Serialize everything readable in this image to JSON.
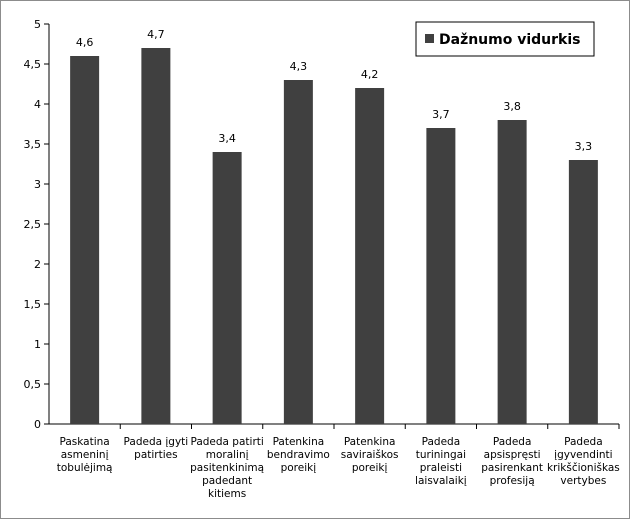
{
  "chart_data": {
    "type": "bar",
    "categories": [
      "Paskatina asmeninį tobulėjimą",
      "Padeda įgyti patirties",
      "Padeda patirti moralinį pasitenkinimą padedant kitiems",
      "Patenkina bendravimo poreikį",
      "Patenkina saviraiškos poreikį",
      "Padeda turiningai praleisti laisvalaikį",
      "Padeda apsispręsti pasirenkant profesiją",
      "Padeda įgyvendinti krikščioniškas vertybes"
    ],
    "category_lines": [
      [
        "Paskatina",
        "asmeninį",
        "tobulėjimą"
      ],
      [
        "Padeda įgyti",
        "patirties"
      ],
      [
        "Padeda patirti",
        "moralinį",
        "pasitenkinimą",
        "padedant",
        "kitiems"
      ],
      [
        "Patenkina",
        "bendravimo",
        "poreikį"
      ],
      [
        "Patenkina",
        "saviraiškos",
        "poreikį"
      ],
      [
        "Padeda",
        "turiningai",
        "praleisti",
        "laisvalaikį"
      ],
      [
        "Padeda",
        "apsispręsti",
        "pasirenkant",
        "profesiją"
      ],
      [
        "Padeda",
        "įgyvendinti",
        "krikščioniškas",
        "vertybes"
      ]
    ],
    "series": [
      {
        "name": "Dažnumo vidurkis",
        "values": [
          4.6,
          4.7,
          3.4,
          4.3,
          4.2,
          3.7,
          3.8,
          3.3
        ],
        "labels": [
          "4,6",
          "4,7",
          "3,4",
          "4,3",
          "4,2",
          "3,7",
          "3,8",
          "3,3"
        ],
        "color": "#404040"
      }
    ],
    "ylim": [
      0,
      5
    ],
    "yticks": [
      0,
      0.5,
      1,
      1.5,
      2,
      2.5,
      3,
      3.5,
      4,
      4.5,
      5
    ],
    "ytick_labels": [
      "0",
      "0,5",
      "1",
      "1,5",
      "2",
      "2,5",
      "3",
      "3,5",
      "4",
      "4,5",
      "5"
    ],
    "grid": false,
    "legend": {
      "placement": "top-right",
      "entries": [
        "Dažnumo vidurkis"
      ]
    },
    "title": "",
    "xlabel": "",
    "ylabel": ""
  }
}
